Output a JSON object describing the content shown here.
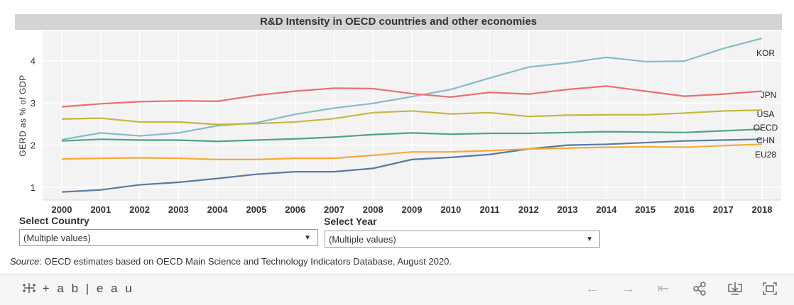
{
  "title": "R&D Intensity in OECD countries and other economies",
  "chart_data": {
    "type": "line",
    "ylabel": "GERD as % of GDP",
    "xlabel": "",
    "ylim": [
      0.7,
      4.7
    ],
    "yticks": [
      1,
      2,
      3,
      4
    ],
    "x": [
      2000,
      2001,
      2002,
      2003,
      2004,
      2005,
      2006,
      2007,
      2008,
      2009,
      2010,
      2011,
      2012,
      2013,
      2014,
      2015,
      2016,
      2017,
      2018
    ],
    "grid": true,
    "series": [
      {
        "name": "KOR",
        "color": "#86bcc8",
        "values": [
          2.13,
          2.29,
          2.22,
          2.29,
          2.46,
          2.53,
          2.73,
          2.88,
          2.99,
          3.15,
          3.32,
          3.59,
          3.85,
          3.95,
          4.08,
          3.98,
          3.99,
          4.29,
          4.53
        ]
      },
      {
        "name": "JPN",
        "color": "#e8716c",
        "values": [
          2.91,
          2.98,
          3.03,
          3.05,
          3.04,
          3.18,
          3.28,
          3.35,
          3.34,
          3.22,
          3.14,
          3.25,
          3.21,
          3.32,
          3.4,
          3.28,
          3.16,
          3.21,
          3.28
        ]
      },
      {
        "name": "USA",
        "color": "#c5b73e",
        "values": [
          2.62,
          2.64,
          2.55,
          2.55,
          2.49,
          2.51,
          2.55,
          2.63,
          2.77,
          2.81,
          2.74,
          2.77,
          2.68,
          2.71,
          2.72,
          2.72,
          2.76,
          2.81,
          2.83
        ]
      },
      {
        "name": "OECD",
        "color": "#4ea386",
        "values": [
          2.1,
          2.14,
          2.12,
          2.12,
          2.09,
          2.12,
          2.15,
          2.19,
          2.25,
          2.29,
          2.26,
          2.28,
          2.28,
          2.3,
          2.32,
          2.31,
          2.3,
          2.34,
          2.38
        ]
      },
      {
        "name": "CHN",
        "color": "#587aa4",
        "values": [
          0.89,
          0.94,
          1.06,
          1.12,
          1.21,
          1.31,
          1.37,
          1.37,
          1.45,
          1.66,
          1.71,
          1.78,
          1.91,
          2.0,
          2.02,
          2.06,
          2.1,
          2.12,
          2.14
        ]
      },
      {
        "name": "EU28",
        "color": "#f5a939",
        "values": [
          1.67,
          1.69,
          1.7,
          1.69,
          1.66,
          1.66,
          1.69,
          1.69,
          1.76,
          1.84,
          1.84,
          1.87,
          1.91,
          1.93,
          1.95,
          1.96,
          1.95,
          1.99,
          2.02
        ]
      }
    ]
  },
  "filters": {
    "country_label": "Select Country",
    "country_value": "(Multiple values)",
    "year_label": "Select Year",
    "year_value": "(Multiple values)"
  },
  "source": {
    "prefix": "Source",
    "text": ": OECD estimates based on OECD Main Science and Technology Indicators Database, August 2020."
  },
  "toolbar": {
    "logo": "+ a b | e a u",
    "icons": [
      "undo-icon",
      "redo-icon",
      "revert-icon",
      "share-icon",
      "download-icon",
      "fullscreen-icon"
    ]
  }
}
